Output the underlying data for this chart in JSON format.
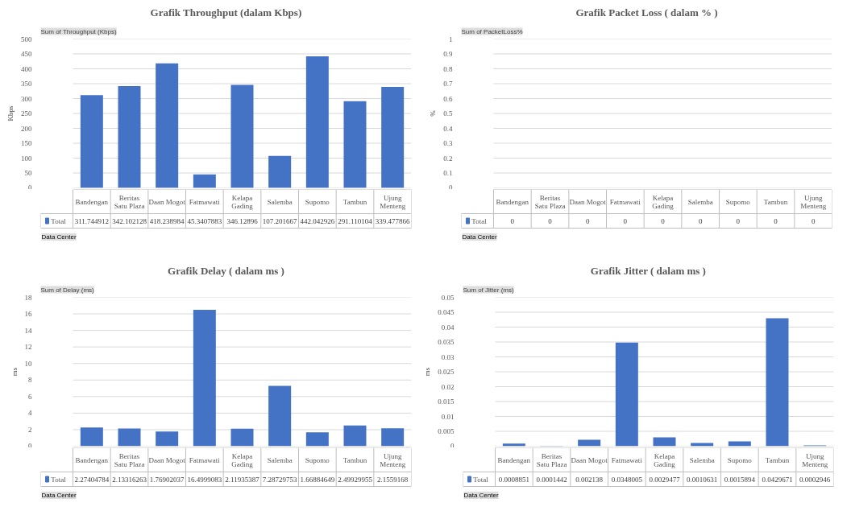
{
  "chart_data": [
    {
      "type": "bar",
      "title": "Grafik Throughput (dalam Kbps)",
      "ylabel": "Kbps",
      "annotations": [
        "Sum of Throughput (Kbps)",
        "Data Center"
      ],
      "categories": [
        "Bandengan",
        "Beritas Satu Plaza",
        "Daan Mogot",
        "Fatmawati",
        "Kelapa Gading",
        "Salemba",
        "Supomo",
        "Tambun",
        "Ujung Menteng"
      ],
      "series": [
        {
          "name": "Total",
          "color": "#4472c4",
          "values": [
            311.744912,
            342.102128,
            418.238984,
            45.3407883,
            346.12896,
            107.201667,
            442.042926,
            291.110104,
            339.477866
          ]
        }
      ],
      "ylim": [
        0,
        500
      ],
      "yticks": [
        0,
        50,
        100,
        150,
        200,
        250,
        300,
        350,
        400,
        450,
        500
      ],
      "grid": "y",
      "data_labels": true,
      "legend": "bottom left"
    },
    {
      "type": "bar",
      "title": "Grafik Packet Loss ( dalam % )",
      "ylabel": "%",
      "annotations": [
        "Sum of PacketLoss%",
        "Data Center"
      ],
      "categories": [
        "Bandengan",
        "Beritas Satu Plaza",
        "Daan Mogot",
        "Fatmawati",
        "Kelapa Gading",
        "Salemba",
        "Supomo",
        "Tambun",
        "Ujung Menteng"
      ],
      "series": [
        {
          "name": "Total",
          "color": "#4472c4",
          "values": [
            0,
            0,
            0,
            0,
            0,
            0,
            0,
            0,
            0
          ]
        }
      ],
      "value_labels": [
        "0",
        "0",
        "0",
        "0",
        "0",
        "0",
        "0",
        "0",
        "0"
      ],
      "ylim": [
        0,
        1
      ],
      "yticks": [
        0,
        0.1,
        0.2,
        0.3,
        0.4,
        0.5,
        0.6,
        0.7,
        0.8,
        0.9,
        1
      ],
      "grid": "y",
      "legend": "bottom left"
    },
    {
      "type": "bar",
      "title": "Grafik Delay ( dalam ms )",
      "ylabel": "ms",
      "annotations": [
        "Sum of Delay (ms)",
        "Data Center"
      ],
      "categories": [
        "Bandengan",
        "Beritas Satu Plaza",
        "Daan Mogot",
        "Fatmawati",
        "Kelapa Gading",
        "Salemba",
        "Supomo",
        "Tambun",
        "Ujung Menteng"
      ],
      "series": [
        {
          "name": "Total",
          "color": "#4472c4",
          "values": [
            2.27404784,
            2.13316263,
            1.76902037,
            16.4999083,
            2.11935387,
            7.28729753,
            1.66884649,
            2.49929955,
            2.1559168
          ]
        }
      ],
      "ylim": [
        0,
        18
      ],
      "yticks": [
        0,
        2,
        4,
        6,
        8,
        10,
        12,
        14,
        16,
        18
      ],
      "grid": "y",
      "data_labels": true,
      "legend": "bottom left"
    },
    {
      "type": "bar",
      "title": "Grafik Jitter ( dalam ms )",
      "ylabel": "ms",
      "annotations": [
        "Sum of Jitter (ms)",
        "Data Center"
      ],
      "categories": [
        "Bandengan",
        "Beritas Satu Plaza",
        "Daan Mogot",
        "Fatmawati",
        "Kelapa Gading",
        "Salemba",
        "Supomo",
        "Tambun",
        "Ujung Menteng"
      ],
      "series": [
        {
          "name": "Total",
          "color": "#4472c4",
          "values": [
            0.0008851,
            0.0001442,
            0.002138,
            0.0348005,
            0.0029477,
            0.0010631,
            0.0015894,
            0.0429671,
            0.0002946
          ]
        }
      ],
      "ylim": [
        0,
        0.05
      ],
      "yticks": [
        0,
        0.005,
        0.01,
        0.015,
        0.02,
        0.025,
        0.03,
        0.035,
        0.04,
        0.045,
        0.05
      ],
      "grid": "y",
      "data_labels": true,
      "legend": "bottom left"
    }
  ]
}
